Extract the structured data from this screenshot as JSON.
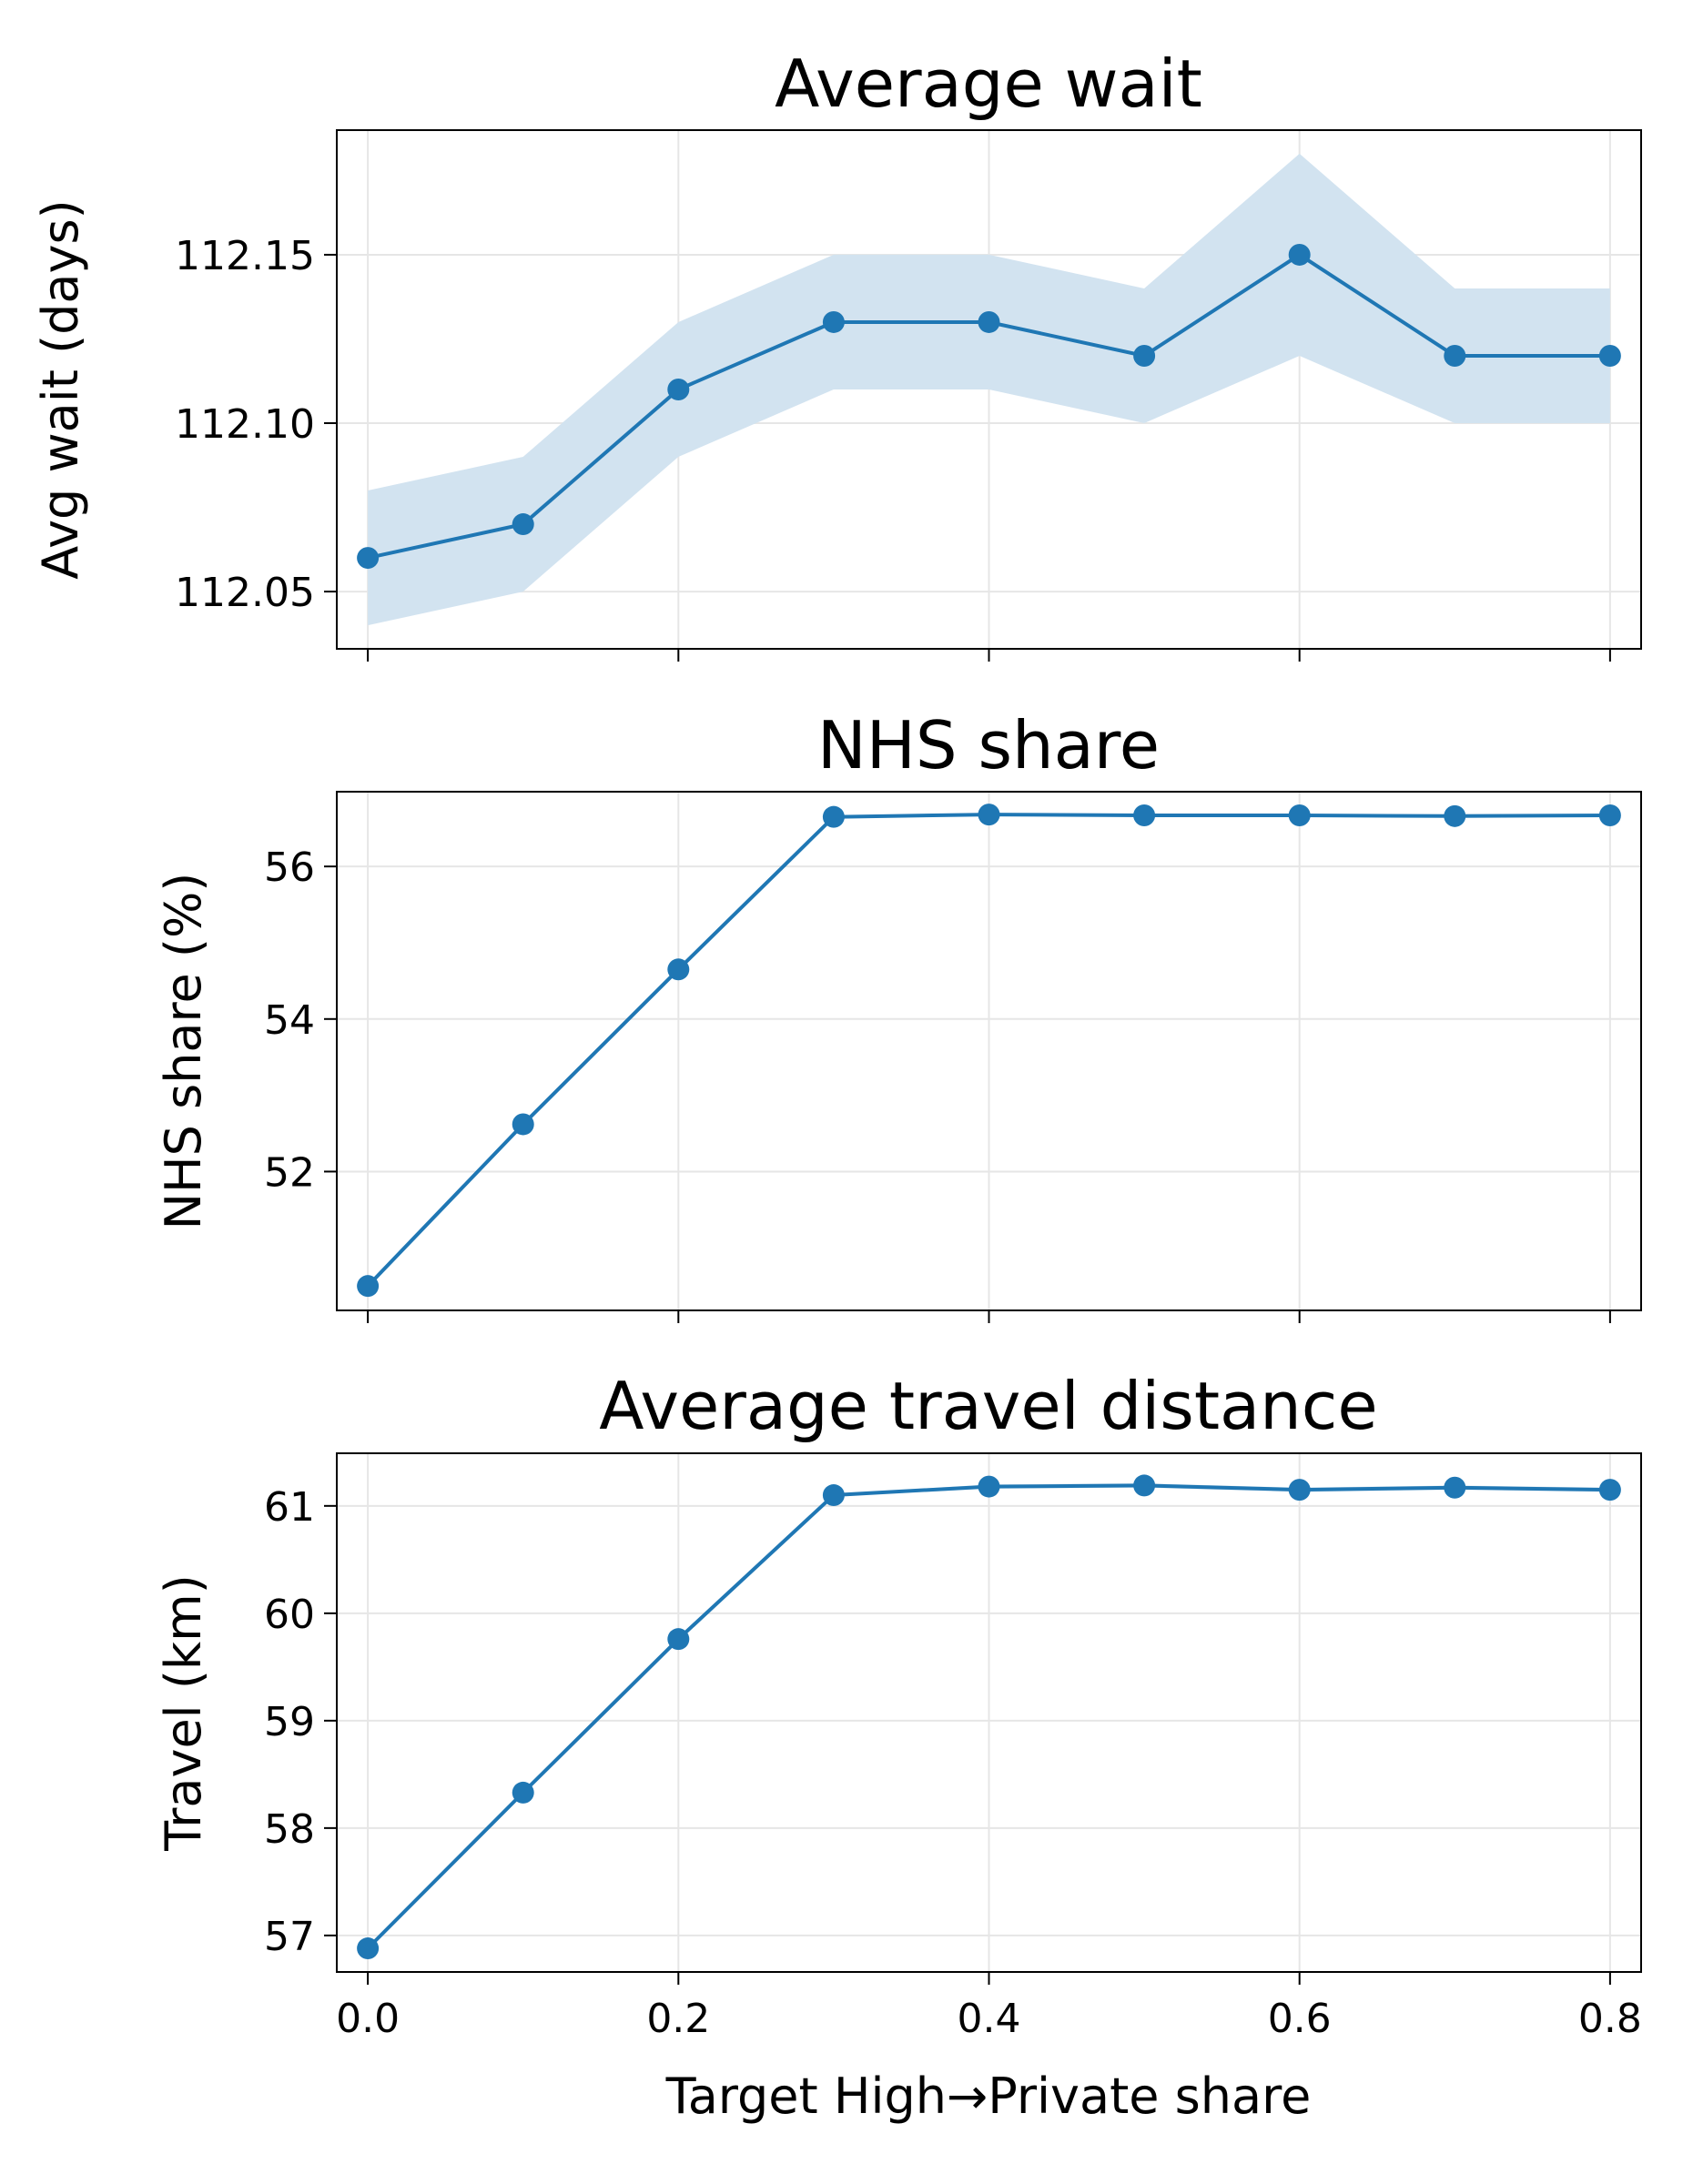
{
  "chart_data": [
    {
      "type": "line",
      "title": "Average wait",
      "xlabel": "",
      "ylabel": "Avg wait (days)",
      "x": [
        0.0,
        0.1,
        0.2,
        0.3,
        0.4,
        0.5,
        0.6,
        0.7,
        0.8
      ],
      "xlim": [
        -0.02,
        0.82
      ],
      "ylim": [
        112.033,
        112.187
      ],
      "yticks": [
        "112.05",
        "112.10",
        "112.15"
      ],
      "series": [
        {
          "values": [
            112.06,
            112.07,
            112.11,
            112.13,
            112.13,
            112.12,
            112.15,
            112.12,
            112.12
          ],
          "band_low": [
            112.04,
            112.05,
            112.09,
            112.11,
            112.11,
            112.1,
            112.12,
            112.1,
            112.1
          ],
          "band_high": [
            112.08,
            112.09,
            112.13,
            112.15,
            112.15,
            112.14,
            112.18,
            112.14,
            112.14
          ]
        }
      ],
      "grid": true,
      "color": "#1f77b4",
      "band_color": "#d2e3f0"
    },
    {
      "type": "line",
      "title": "NHS share",
      "xlabel": "",
      "ylabel": "NHS share (%)",
      "x": [
        0.0,
        0.1,
        0.2,
        0.3,
        0.4,
        0.5,
        0.6,
        0.7,
        0.8
      ],
      "xlim": [
        -0.02,
        0.82
      ],
      "ylim": [
        50.18,
        56.98
      ],
      "yticks": [
        "52",
        "54",
        "56"
      ],
      "series": [
        {
          "values": [
            50.5,
            52.62,
            54.65,
            56.65,
            56.68,
            56.67,
            56.67,
            56.66,
            56.67
          ],
          "band_low": [
            50.5,
            52.62,
            54.65,
            56.65,
            56.68,
            56.67,
            56.67,
            56.66,
            56.67
          ],
          "band_high": [
            50.5,
            52.62,
            54.65,
            56.65,
            56.68,
            56.67,
            56.67,
            56.66,
            56.67
          ]
        }
      ],
      "grid": true,
      "color": "#1f77b4",
      "band_color": "#d2e3f0"
    },
    {
      "type": "line",
      "title": "Average travel distance",
      "xlabel": "Target High→Private share",
      "ylabel": "Travel (km)",
      "x": [
        0.0,
        0.1,
        0.2,
        0.3,
        0.4,
        0.5,
        0.6,
        0.7,
        0.8
      ],
      "xlim": [
        -0.02,
        0.82
      ],
      "ylim": [
        56.66,
        61.49
      ],
      "xticks": [
        "0.0",
        "0.2",
        "0.4",
        "0.6",
        "0.8"
      ],
      "yticks": [
        "57",
        "58",
        "59",
        "60",
        "61"
      ],
      "series": [
        {
          "values": [
            56.88,
            58.33,
            59.76,
            61.1,
            61.18,
            61.19,
            61.15,
            61.17,
            61.15
          ],
          "band_low": [
            56.87,
            58.32,
            59.75,
            61.09,
            61.16,
            61.17,
            61.13,
            61.15,
            61.13
          ],
          "band_high": [
            56.89,
            58.34,
            59.77,
            61.11,
            61.2,
            61.21,
            61.17,
            61.19,
            61.17
          ]
        }
      ],
      "grid": true,
      "color": "#1f77b4",
      "band_color": "#d2e3f0"
    }
  ]
}
